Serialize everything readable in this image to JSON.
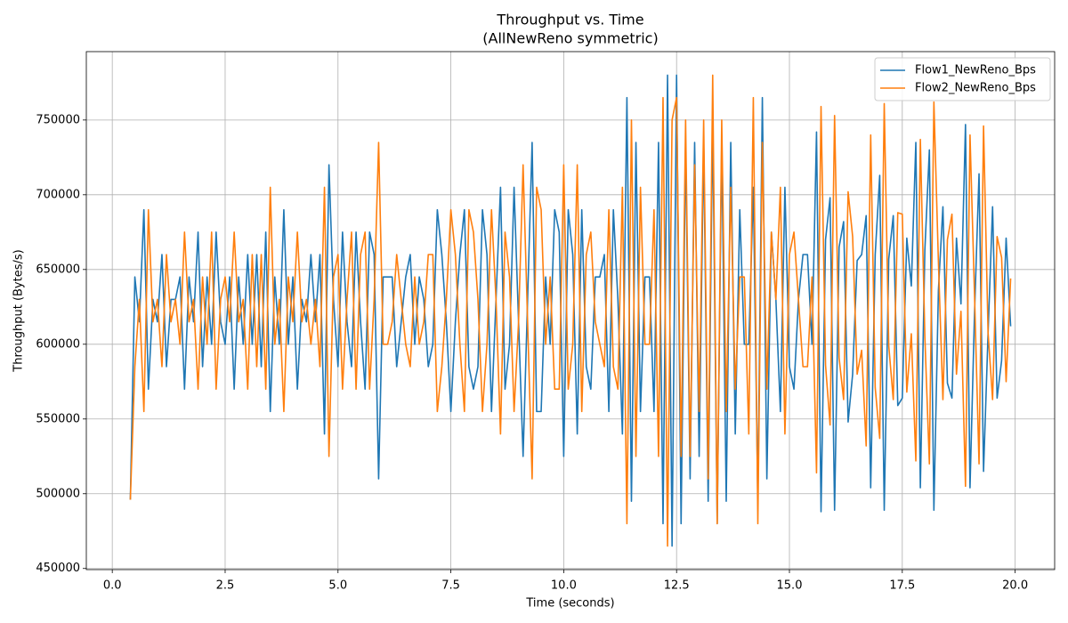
{
  "chart_data": {
    "type": "line",
    "title": "Throughput vs. Time",
    "subtitle": "(AllNewReno symmetric)",
    "x_label": "Time (seconds)",
    "y_label": "Throughput (Bytes/s)",
    "x": [
      0.4,
      0.5,
      0.6,
      0.7,
      0.8,
      0.9,
      1.0,
      1.1,
      1.2,
      1.3,
      1.4,
      1.5,
      1.6,
      1.7,
      1.8,
      1.9,
      2.0,
      2.1,
      2.2,
      2.3,
      2.4,
      2.5,
      2.6,
      2.7,
      2.8,
      2.9,
      3.0,
      3.1,
      3.2,
      3.3,
      3.4,
      3.5,
      3.6,
      3.7,
      3.8,
      3.9,
      4.0,
      4.1,
      4.2,
      4.3,
      4.4,
      4.5,
      4.6,
      4.7,
      4.8,
      4.9,
      5.0,
      5.1,
      5.2,
      5.3,
      5.4,
      5.5,
      5.6,
      5.7,
      5.8,
      5.9,
      6.0,
      6.1,
      6.2,
      6.3,
      6.4,
      6.5,
      6.6,
      6.7,
      6.8,
      6.9,
      7.0,
      7.1,
      7.2,
      7.3,
      7.4,
      7.5,
      7.6,
      7.7,
      7.8,
      7.9,
      8.0,
      8.1,
      8.2,
      8.3,
      8.4,
      8.5,
      8.6,
      8.7,
      8.8,
      8.9,
      9.0,
      9.1,
      9.2,
      9.3,
      9.4,
      9.5,
      9.6,
      9.7,
      9.8,
      9.9,
      10.0,
      10.1,
      10.2,
      10.3,
      10.4,
      10.5,
      10.6,
      10.7,
      10.8,
      10.9,
      11.0,
      11.1,
      11.2,
      11.3,
      11.4,
      11.5,
      11.6,
      11.7,
      11.8,
      11.9,
      12.0,
      12.1,
      12.2,
      12.3,
      12.4,
      12.5,
      12.6,
      12.7,
      12.8,
      12.9,
      13.0,
      13.1,
      13.2,
      13.3,
      13.4,
      13.5,
      13.6,
      13.7,
      13.8,
      13.9,
      14.0,
      14.1,
      14.2,
      14.3,
      14.4,
      14.5,
      14.6,
      14.7,
      14.8,
      14.9,
      15.0,
      15.1,
      15.2,
      15.3,
      15.4,
      15.5,
      15.6,
      15.7,
      15.8,
      15.9,
      16.0,
      16.1,
      16.2,
      16.3,
      16.4,
      16.5,
      16.6,
      16.7,
      16.8,
      16.9,
      17.0,
      17.1,
      17.2,
      17.3,
      17.4,
      17.5,
      17.6,
      17.7,
      17.8,
      17.9,
      18.0,
      18.1,
      18.2,
      18.3,
      18.4,
      18.5,
      18.6,
      18.7,
      18.8,
      18.9,
      19.0,
      19.1,
      19.2,
      19.3,
      19.4,
      19.5,
      19.6,
      19.7,
      19.8,
      19.9
    ],
    "series": [
      {
        "name": "Flow1_NewReno_Bps",
        "color": "#1f77b4",
        "values": [
          496000,
          645000,
          615000,
          690000,
          570000,
          630000,
          615000,
          660000,
          585000,
          630000,
          630000,
          645000,
          570000,
          645000,
          615000,
          675000,
          585000,
          645000,
          600000,
          675000,
          615000,
          600000,
          645000,
          570000,
          645000,
          600000,
          660000,
          600000,
          660000,
          585000,
          675000,
          555000,
          645000,
          600000,
          690000,
          600000,
          645000,
          570000,
          630000,
          615000,
          660000,
          615000,
          660000,
          540000,
          720000,
          630000,
          585000,
          675000,
          615000,
          585000,
          675000,
          615000,
          570000,
          675000,
          660000,
          510000,
          645000,
          645000,
          645000,
          585000,
          615000,
          645000,
          660000,
          600000,
          645000,
          630000,
          585000,
          600000,
          690000,
          660000,
          615000,
          555000,
          615000,
          660000,
          690000,
          585000,
          570000,
          585000,
          690000,
          660000,
          555000,
          630000,
          705000,
          570000,
          600000,
          705000,
          615000,
          525000,
          630000,
          735000,
          555000,
          555000,
          645000,
          600000,
          690000,
          675000,
          525000,
          690000,
          660000,
          540000,
          690000,
          585000,
          570000,
          645000,
          645000,
          660000,
          555000,
          690000,
          630000,
          540000,
          765000,
          495000,
          735000,
          555000,
          645000,
          645000,
          555000,
          735000,
          480000,
          780000,
          465000,
          780000,
          480000,
          735000,
          510000,
          735000,
          525000,
          735000,
          495000,
          750000,
          480000,
          735000,
          495000,
          735000,
          540000,
          690000,
          600000,
          600000,
          705000,
          495000,
          765000,
          510000,
          675000,
          630000,
          555000,
          705000,
          585000,
          570000,
          630000,
          660000,
          660000,
          600000,
          742000,
          488000,
          670000,
          698000,
          489000,
          665000,
          682000,
          548000,
          580000,
          656000,
          660000,
          686000,
          504000,
          660000,
          713000,
          489000,
          657000,
          686000,
          559000,
          564000,
          671000,
          639000,
          735000,
          504000,
          663000,
          730000,
          489000,
          636000,
          692000,
          574000,
          564000,
          671000,
          627000,
          747000,
          504000,
          621000,
          714000,
          515000,
          607000,
          692000,
          564000,
          589000,
          671000,
          612000
        ]
      },
      {
        "name": "Flow2_NewReno_Bps",
        "color": "#ff7f0e",
        "values": [
          496000,
          585000,
          630000,
          555000,
          690000,
          615000,
          630000,
          585000,
          660000,
          615000,
          630000,
          600000,
          675000,
          615000,
          630000,
          570000,
          645000,
          600000,
          675000,
          570000,
          630000,
          645000,
          615000,
          675000,
          615000,
          630000,
          570000,
          660000,
          585000,
          660000,
          570000,
          705000,
          600000,
          630000,
          555000,
          645000,
          615000,
          675000,
          615000,
          630000,
          600000,
          630000,
          585000,
          705000,
          525000,
          645000,
          660000,
          570000,
          630000,
          675000,
          570000,
          660000,
          675000,
          570000,
          630000,
          735000,
          600000,
          600000,
          615000,
          660000,
          630000,
          600000,
          585000,
          645000,
          600000,
          615000,
          660000,
          660000,
          555000,
          585000,
          630000,
          690000,
          660000,
          600000,
          555000,
          690000,
          675000,
          630000,
          555000,
          600000,
          690000,
          630000,
          540000,
          675000,
          645000,
          555000,
          615000,
          720000,
          615000,
          510000,
          705000,
          690000,
          600000,
          645000,
          570000,
          570000,
          720000,
          570000,
          600000,
          720000,
          555000,
          660000,
          675000,
          615000,
          600000,
          585000,
          690000,
          585000,
          570000,
          705000,
          480000,
          750000,
          525000,
          705000,
          600000,
          600000,
          690000,
          525000,
          765000,
          465000,
          750000,
          765000,
          525000,
          750000,
          525000,
          720000,
          555000,
          750000,
          510000,
          780000,
          480000,
          750000,
          555000,
          705000,
          570000,
          645000,
          645000,
          540000,
          765000,
          480000,
          735000,
          570000,
          675000,
          630000,
          705000,
          540000,
          660000,
          675000,
          630000,
          585000,
          585000,
          645000,
          514000,
          759000,
          586000,
          546000,
          753000,
          591000,
          563000,
          702000,
          672000,
          580000,
          596000,
          532000,
          740000,
          571000,
          537000,
          761000,
          599000,
          563000,
          688000,
          687000,
          568000,
          607000,
          522000,
          737000,
          605000,
          520000,
          762000,
          655000,
          563000,
          670000,
          687000,
          580000,
          622000,
          505000,
          740000,
          633000,
          520000,
          746000,
          608000,
          563000,
          672000,
          658000,
          575000,
          644000
        ]
      }
    ],
    "xlim": [
      -0.575,
      20.875
    ],
    "ylim": [
      449250,
      795750
    ],
    "xticks": [
      {
        "value": 0,
        "label": "0.0"
      },
      {
        "value": 2.5,
        "label": "2.5"
      },
      {
        "value": 5,
        "label": "5.0"
      },
      {
        "value": 7.5,
        "label": "7.5"
      },
      {
        "value": 10,
        "label": "10.0"
      },
      {
        "value": 12.5,
        "label": "12.5"
      },
      {
        "value": 15,
        "label": "15.0"
      },
      {
        "value": 17.5,
        "label": "17.5"
      },
      {
        "value": 20,
        "label": "20.0"
      }
    ],
    "yticks": [
      450000,
      500000,
      550000,
      600000,
      650000,
      700000,
      750000
    ],
    "grid": true,
    "legend": "upper right"
  }
}
